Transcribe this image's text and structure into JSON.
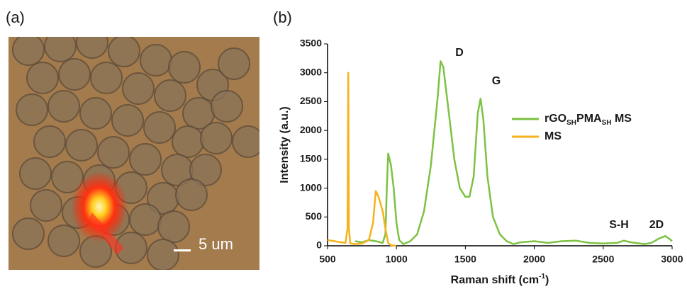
{
  "panels": [
    "(a)",
    "(b)"
  ],
  "image": {
    "scale_bar": "5 um"
  },
  "chart_data": {
    "type": "line",
    "x_label": [
      {
        "text": "Raman shift (cm"
      },
      {
        "text": "-1",
        "sup": true
      },
      {
        "text": ")"
      }
    ],
    "y_label": "Intensity (a.u.)",
    "xlim": [
      500,
      3000
    ],
    "xticks": [
      500,
      1000,
      1500,
      2000,
      2500,
      3000
    ],
    "ylim": [
      0,
      3500
    ],
    "yticks": [
      0,
      500,
      1000,
      1500,
      2000,
      2500,
      3000,
      3500
    ],
    "annotations": [
      "D",
      "G",
      "S-H",
      "2D"
    ],
    "series": [
      {
        "name": [
          {
            "text": "rGO"
          },
          {
            "text": "SH",
            "sub": true
          },
          {
            "text": "PMA"
          },
          {
            "text": "SH",
            "sub": true
          },
          {
            "text": " MS"
          }
        ],
        "color": "#7dc242",
        "x": [
          700,
          750,
          800,
          850,
          900,
          920,
          930,
          940,
          960,
          980,
          1000,
          1020,
          1050,
          1100,
          1150,
          1200,
          1250,
          1300,
          1320,
          1340,
          1380,
          1420,
          1460,
          1500,
          1530,
          1560,
          1590,
          1610,
          1630,
          1660,
          1700,
          1750,
          1800,
          1850,
          1900,
          2000,
          2100,
          2200,
          2300,
          2400,
          2500,
          2600,
          2650,
          2700,
          2800,
          2850,
          2900,
          2950,
          2980,
          3000
        ],
        "values": [
          80,
          60,
          100,
          80,
          50,
          200,
          1000,
          1600,
          1400,
          1000,
          400,
          100,
          30,
          80,
          200,
          600,
          1400,
          2600,
          3200,
          3100,
          2300,
          1500,
          1000,
          850,
          850,
          1200,
          2300,
          2550,
          2200,
          1200,
          500,
          200,
          80,
          30,
          60,
          80,
          50,
          80,
          90,
          50,
          40,
          50,
          90,
          60,
          30,
          50,
          120,
          170,
          120,
          80
        ]
      },
      {
        "name": [
          {
            "text": "MS"
          }
        ],
        "color": "#f7b21b",
        "x": [
          500,
          550,
          600,
          630,
          645,
          650,
          655,
          665,
          700,
          750,
          800,
          830,
          850,
          870,
          900,
          920,
          940,
          960,
          1000
        ],
        "values": [
          100,
          80,
          60,
          50,
          300,
          3000,
          300,
          40,
          30,
          40,
          100,
          400,
          950,
          850,
          600,
          300,
          50,
          10,
          0
        ]
      }
    ]
  }
}
